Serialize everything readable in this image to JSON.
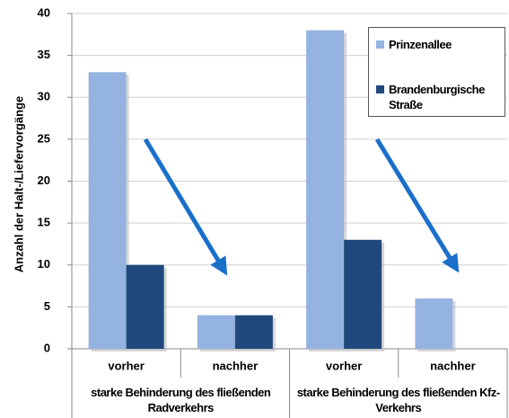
{
  "chart_data": {
    "type": "bar",
    "y_label": "Anzahl der Halt-/Liefervorgänge",
    "categories": [
      "vorher",
      "nachher",
      "vorher",
      "nachher"
    ],
    "groups": [
      "starke Behinderung des fließenden Radverkehrs",
      "starke Behinderung des fließenden Kfz-Verkehrs"
    ],
    "series": [
      {
        "name": "Prinzenallee",
        "color": "#95b3e0",
        "values": [
          33,
          4,
          38,
          6
        ]
      },
      {
        "name": "Brandenburgische Straße",
        "color": "#1f497d",
        "values": [
          10,
          4,
          13,
          0
        ]
      }
    ],
    "ylim": [
      0,
      40
    ],
    "yticks": [
      0,
      5,
      10,
      15,
      20,
      25,
      30,
      35,
      40
    ],
    "grid": true
  }
}
